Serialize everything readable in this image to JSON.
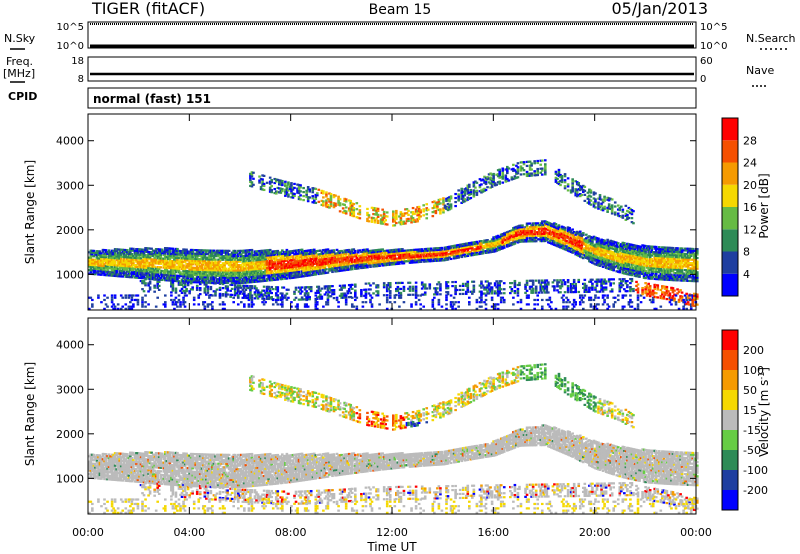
{
  "header": {
    "radar": "TIGER (fitACF)",
    "beam": "Beam 15",
    "date": "05/Jan/2013"
  },
  "top_panels": {
    "nsky_label": "N.Sky",
    "nsky_ticks": [
      "10^5",
      "10^0"
    ],
    "nsearch_label": "N.Search",
    "nsearch_ticks": [
      "10^5",
      "10^0"
    ],
    "freq_label_1": "Freq.",
    "freq_label_2": "[MHz]",
    "freq_ticks": [
      "18",
      "8"
    ],
    "nave_label": "Nave",
    "nave_ticks": [
      "60",
      "0"
    ],
    "cpid_label": "CPID",
    "cpid_text": "normal (fast) 151"
  },
  "chart_data": [
    {
      "type": "heatmap",
      "title": "",
      "ylabel": "Slant Range [km]",
      "yticks": [
        "1000",
        "2000",
        "3000",
        "4000"
      ],
      "ylim": [
        200,
        4600
      ],
      "xlim": [
        0,
        24
      ],
      "colorbar": {
        "label": "Power [dB]",
        "ticks": [
          "4",
          "8",
          "12",
          "16",
          "20",
          "24",
          "28"
        ],
        "colors": [
          "#0000ff",
          "#1f3fa0",
          "#2e8b57",
          "#66bb44",
          "#f5d800",
          "#f59a00",
          "#f55000",
          "#ff0000"
        ]
      },
      "bands": [
        {
          "name": "main",
          "points": [
            [
              0,
              1300
            ],
            [
              2,
              1280
            ],
            [
              4,
              1230
            ],
            [
              6,
              1200
            ],
            [
              8,
              1260
            ],
            [
              10,
              1350
            ],
            [
              12,
              1420
            ],
            [
              14,
              1480
            ],
            [
              16,
              1700
            ],
            [
              17,
              1950
            ],
            [
              18,
              2000
            ],
            [
              19,
              1800
            ],
            [
              20,
              1550
            ],
            [
              21,
              1400
            ],
            [
              22,
              1300
            ],
            [
              24,
              1250
            ]
          ]
        },
        {
          "name": "upper",
          "points": [
            [
              6.3,
              3200
            ],
            [
              7.5,
              3000
            ],
            [
              9,
              2800
            ],
            [
              10,
              2600
            ],
            [
              11,
              2400
            ],
            [
              12,
              2300
            ],
            [
              13,
              2400
            ],
            [
              14,
              2600
            ],
            [
              15,
              2900
            ],
            [
              16,
              3200
            ],
            [
              17,
              3400
            ],
            [
              18,
              3450
            ],
            [
              19,
              3050
            ],
            [
              20,
              2700
            ],
            [
              21,
              2500
            ],
            [
              21.5,
              2300
            ]
          ]
        },
        {
          "name": "lower",
          "points": [
            [
              2,
              800
            ],
            [
              4,
              750
            ],
            [
              6,
              650
            ],
            [
              8,
              600
            ],
            [
              10,
              650
            ],
            [
              11,
              700
            ],
            [
              21.5,
              800
            ],
            [
              22,
              700
            ],
            [
              23,
              600
            ],
            [
              24,
              450
            ]
          ]
        }
      ]
    },
    {
      "type": "heatmap",
      "title": "",
      "xlabel": "Time UT",
      "ylabel": "Slant Range [km]",
      "yticks": [
        "1000",
        "2000",
        "3000",
        "4000"
      ],
      "xticks": [
        "00:00",
        "04:00",
        "08:00",
        "12:00",
        "16:00",
        "20:00",
        "00:00"
      ],
      "ylim": [
        200,
        4600
      ],
      "xlim": [
        0,
        24
      ],
      "colorbar": {
        "label": "Velocity [m s^-1]",
        "ticks": [
          "200",
          "100",
          "50",
          "15",
          "-15",
          "-50",
          "-100",
          "-200"
        ],
        "colors": [
          "#0000ff",
          "#1f3fa0",
          "#2e8b57",
          "#66cc44",
          "#bbbbbb",
          "#f5d800",
          "#f59a00",
          "#f55000",
          "#ff0000"
        ]
      }
    }
  ]
}
